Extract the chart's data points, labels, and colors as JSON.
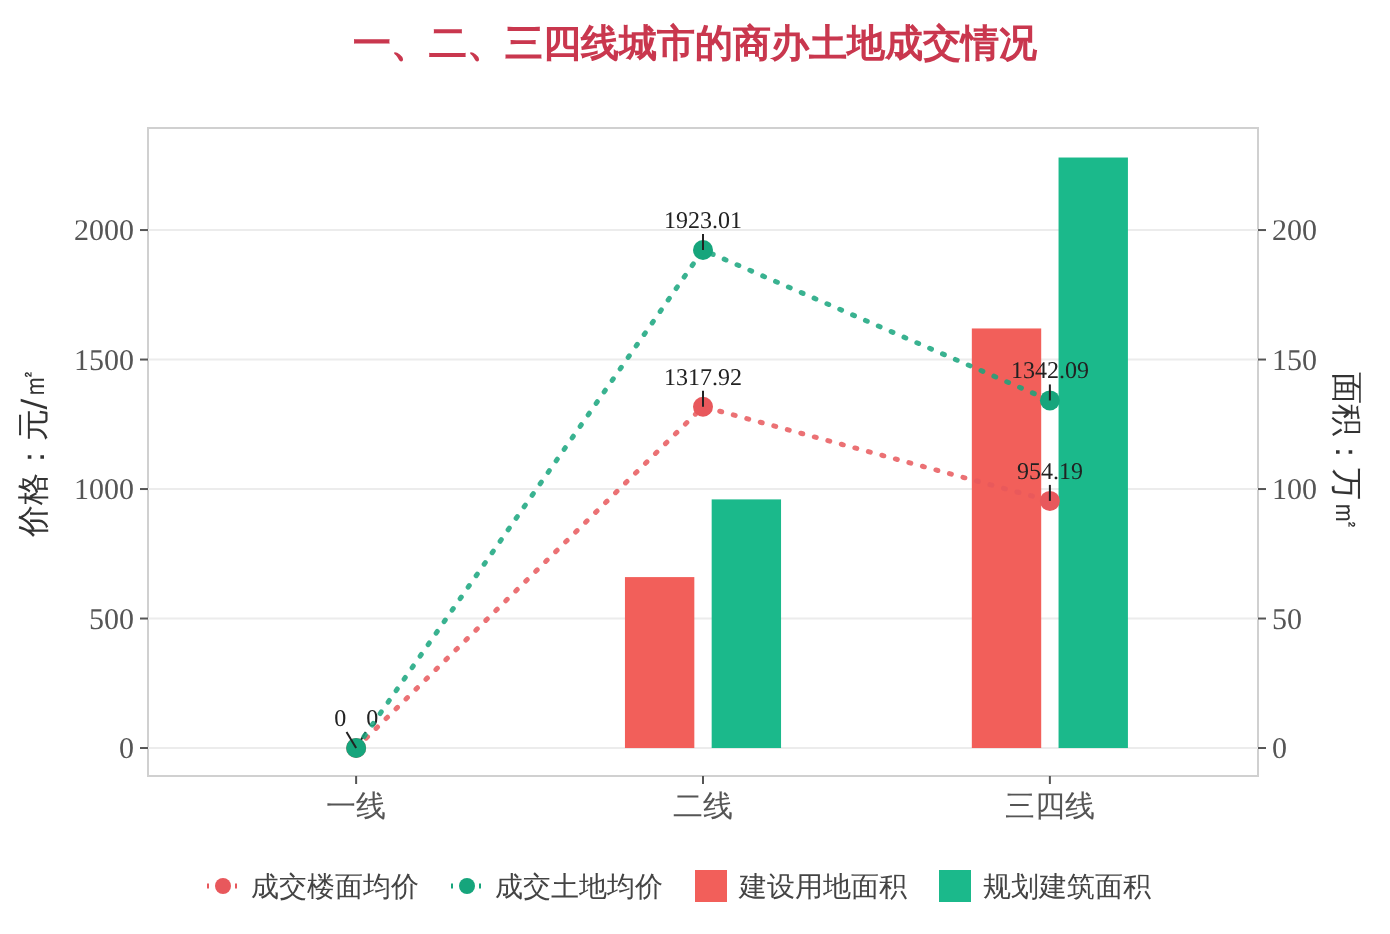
{
  "chart_data": {
    "type": "bar",
    "title": "一、二、三四线城市的商办土地成交情况",
    "ylabel": "价格：元/㎡",
    "y2label": "面积：万㎡",
    "categories": [
      "一线",
      "二线",
      "三四线"
    ],
    "series": [
      {
        "name": "成交楼面均价",
        "type": "line",
        "color": "#e8585c",
        "values": [
          0,
          1317.92,
          954.19
        ],
        "value_labels": [
          "0",
          "1317.92",
          "954.19"
        ]
      },
      {
        "name": "成交土地均价",
        "type": "line",
        "color": "#16a57c",
        "values": [
          0,
          1923.01,
          1342.09
        ],
        "value_labels": [
          "0",
          "1923.01",
          "1342.09"
        ]
      },
      {
        "name": "建设用地面积",
        "axis": "y2",
        "color": "#f25f5a",
        "values": [
          0,
          66,
          162
        ]
      },
      {
        "name": "规划建筑面积",
        "axis": "y2",
        "color": "#1bb98b",
        "values": [
          0,
          96,
          228
        ]
      }
    ],
    "ylim": [
      -108,
      2394
    ],
    "yticks": [
      0,
      500,
      1000,
      1500,
      2000
    ],
    "y2lim": [
      -10.8,
      239.4
    ],
    "y2ticks": [
      0,
      50,
      100,
      150,
      200
    ],
    "grid": "y",
    "legend": "bottom",
    "marker": "circle",
    "line_style": "dotted"
  }
}
